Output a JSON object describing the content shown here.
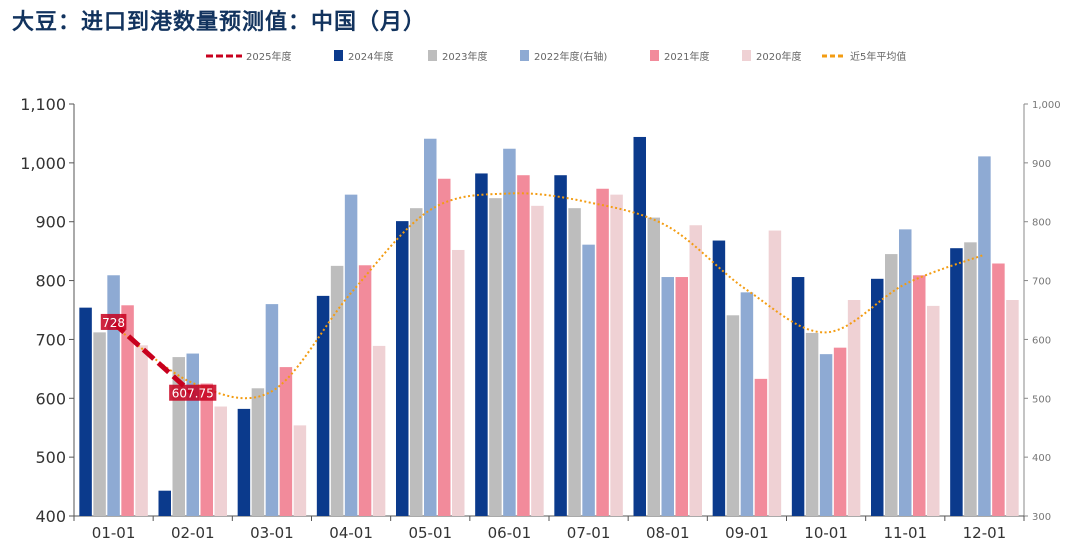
{
  "title": "大豆：进口到港数量预测值：中国（月）",
  "chart_data": {
    "type": "bar",
    "categories": [
      "01-01",
      "02-01",
      "03-01",
      "04-01",
      "05-01",
      "06-01",
      "07-01",
      "08-01",
      "09-01",
      "10-01",
      "11-01",
      "12-01"
    ],
    "y_left": {
      "min": 400,
      "max": 1100,
      "ticks": [
        "400",
        "500",
        "600",
        "700",
        "800",
        "900",
        "1,000",
        "1,100"
      ]
    },
    "y_right": {
      "min": 300,
      "max": 1000,
      "ticks": [
        "300",
        "400",
        "500",
        "600",
        "700",
        "800",
        "900",
        "1,000"
      ]
    },
    "series": [
      {
        "name": "2024年度",
        "color": "#0b3a8c",
        "axis": "left",
        "values": [
          754,
          443,
          582,
          774,
          901,
          982,
          979,
          1044,
          868,
          806,
          803,
          855
        ]
      },
      {
        "name": "2023年度",
        "color": "#bdbdbd",
        "axis": "left",
        "values": [
          712,
          670,
          617,
          825,
          923,
          940,
          923,
          907,
          741,
          711,
          845,
          865
        ]
      },
      {
        "name": "2022年度(右轴)",
        "color": "#8eaad3",
        "axis": "right",
        "values": [
          709,
          576,
          660,
          846,
          941,
          924,
          761,
          706,
          680,
          575,
          787,
          911
        ]
      },
      {
        "name": "2021年度",
        "color": "#f28b9b",
        "axis": "left",
        "values": [
          758,
          625,
          653,
          826,
          973,
          979,
          956,
          806,
          633,
          686,
          809,
          829
        ]
      },
      {
        "name": "2020年度",
        "color": "#efd1d4",
        "axis": "left",
        "values": [
          690,
          586,
          554,
          689,
          852,
          927,
          946,
          894,
          885,
          767,
          757,
          767
        ]
      }
    ],
    "forecast": {
      "name": "2025年度",
      "color": "#c8001e",
      "axis": "left",
      "x": [
        "01-01",
        "02-01"
      ],
      "values": [
        728,
        607.75
      ],
      "labels": [
        "728",
        "607.75"
      ]
    },
    "avg5y": {
      "name": "近5年平均值",
      "color": "#f39c12",
      "axis": "left",
      "values": [
        724,
        626,
        612,
        779,
        920,
        948,
        933,
        892,
        784,
        712,
        794,
        844
      ]
    },
    "legend_position": "top",
    "grid": false
  },
  "colors": {
    "title": "#12335e",
    "axis": "#333333"
  }
}
